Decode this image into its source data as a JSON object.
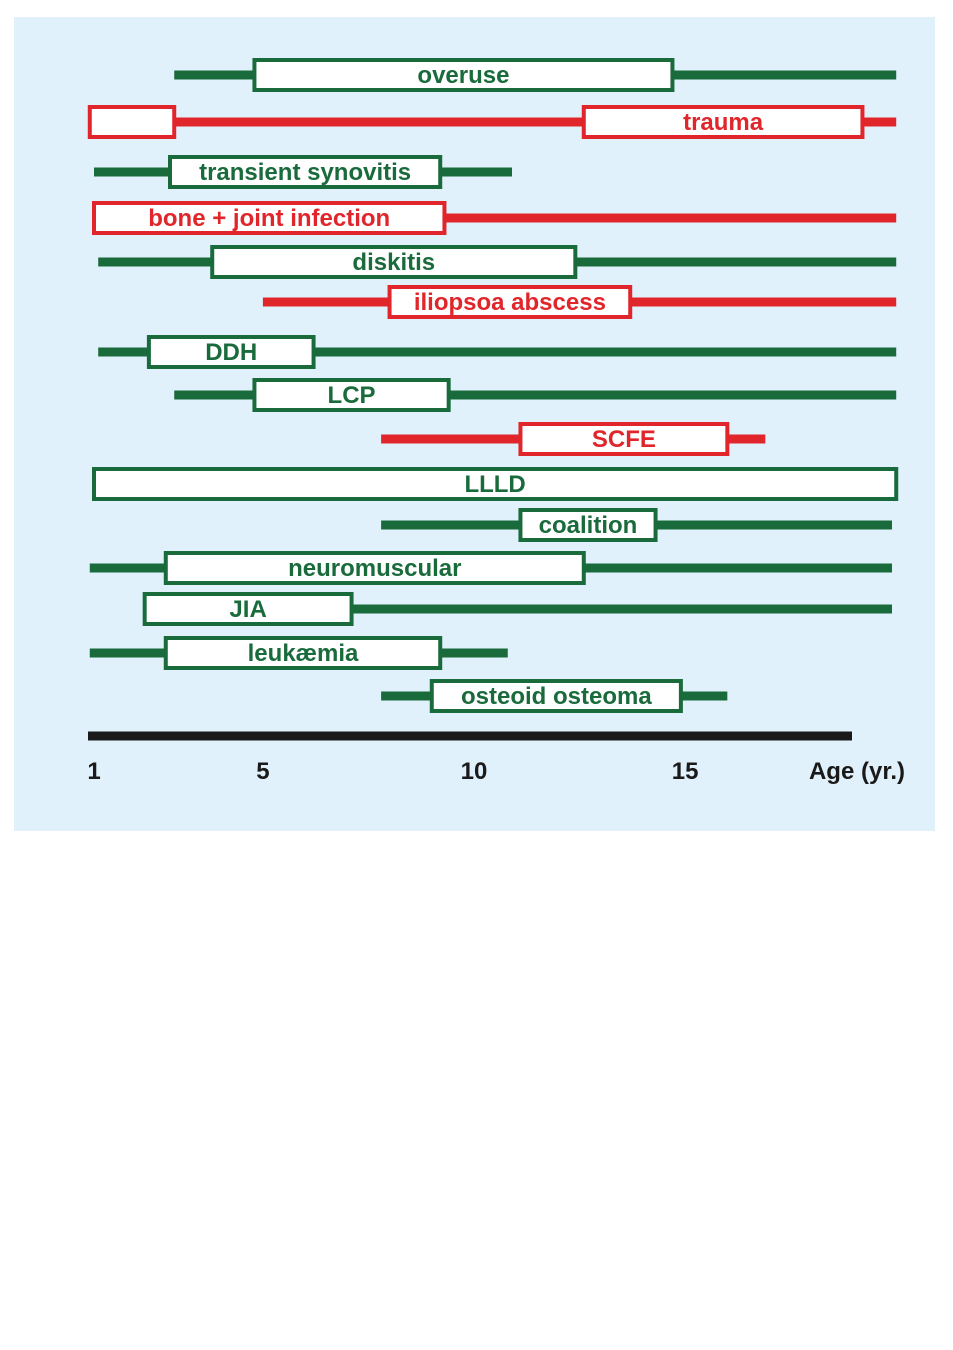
{
  "chart_data": {
    "type": "range-bar",
    "colors": {
      "green": "#1a6b3c",
      "red": "#e0262b",
      "axis": "#1a1a1a",
      "background": "#e0f1fb",
      "box_fill": "#ffffff"
    },
    "xlim": [
      1,
      20
    ],
    "xlabel": "Age (yr.)",
    "ticks": [
      {
        "value": 1,
        "label": "1"
      },
      {
        "value": 5,
        "label": "5"
      },
      {
        "value": 10,
        "label": "10"
      },
      {
        "value": 15,
        "label": "15"
      }
    ],
    "series": [
      {
        "label": "overuse",
        "color": "green",
        "line": [
          2.9,
          20.0
        ],
        "boxes": [
          [
            4.8,
            14.7
          ]
        ],
        "label_box": 0
      },
      {
        "label": "trauma",
        "color": "red",
        "line": [
          0.9,
          20.0
        ],
        "boxes": [
          [
            0.9,
            2.9
          ],
          [
            12.6,
            19.2
          ]
        ],
        "label_box": 1
      },
      {
        "label": "transient synovitis",
        "color": "green",
        "line": [
          1.0,
          10.9
        ],
        "boxes": [
          [
            2.8,
            9.2
          ]
        ],
        "label_box": 0
      },
      {
        "label": "bone + joint infection",
        "color": "red",
        "line": [
          1.0,
          20.0
        ],
        "boxes": [
          [
            1.0,
            9.3
          ]
        ],
        "label_box": 0
      },
      {
        "label": "diskitis",
        "color": "green",
        "line": [
          1.1,
          20.0
        ],
        "boxes": [
          [
            3.8,
            12.4
          ]
        ],
        "label_box": 0
      },
      {
        "label": "iliopsoa abscess",
        "color": "red",
        "line": [
          5.0,
          20.0
        ],
        "boxes": [
          [
            8.0,
            13.7
          ]
        ],
        "label_box": 0
      },
      {
        "label": "DDH",
        "color": "green",
        "line": [
          1.1,
          20.0
        ],
        "boxes": [
          [
            2.3,
            6.2
          ]
        ],
        "label_box": 0
      },
      {
        "label": "LCP",
        "color": "green",
        "line": [
          2.9,
          20.0
        ],
        "boxes": [
          [
            4.8,
            9.4
          ]
        ],
        "label_box": 0
      },
      {
        "label": "SCFE",
        "color": "red",
        "line": [
          7.8,
          16.9
        ],
        "boxes": [
          [
            11.1,
            16.0
          ]
        ],
        "label_box": 0
      },
      {
        "label": "LLLD",
        "color": "green",
        "line": [
          1.0,
          20.0
        ],
        "boxes": [
          [
            1.0,
            20.0
          ]
        ],
        "label_box": 0
      },
      {
        "label": "coalition",
        "color": "green",
        "line": [
          7.8,
          19.9
        ],
        "boxes": [
          [
            11.1,
            14.3
          ]
        ],
        "label_box": 0
      },
      {
        "label": "neuromuscular",
        "color": "green",
        "line": [
          0.9,
          19.9
        ],
        "boxes": [
          [
            2.7,
            12.6
          ]
        ],
        "label_box": 0
      },
      {
        "label": "JIA",
        "color": "green",
        "line": [
          2.2,
          19.9
        ],
        "boxes": [
          [
            2.2,
            7.1
          ]
        ],
        "label_box": 0
      },
      {
        "label": "leukæmia",
        "color": "green",
        "line": [
          0.9,
          10.8
        ],
        "boxes": [
          [
            2.7,
            9.2
          ]
        ],
        "label_box": 0
      },
      {
        "label": "osteoid osteoma",
        "color": "green",
        "line": [
          7.8,
          16.0
        ],
        "boxes": [
          [
            9.0,
            14.9
          ]
        ],
        "label_box": 0
      }
    ]
  }
}
